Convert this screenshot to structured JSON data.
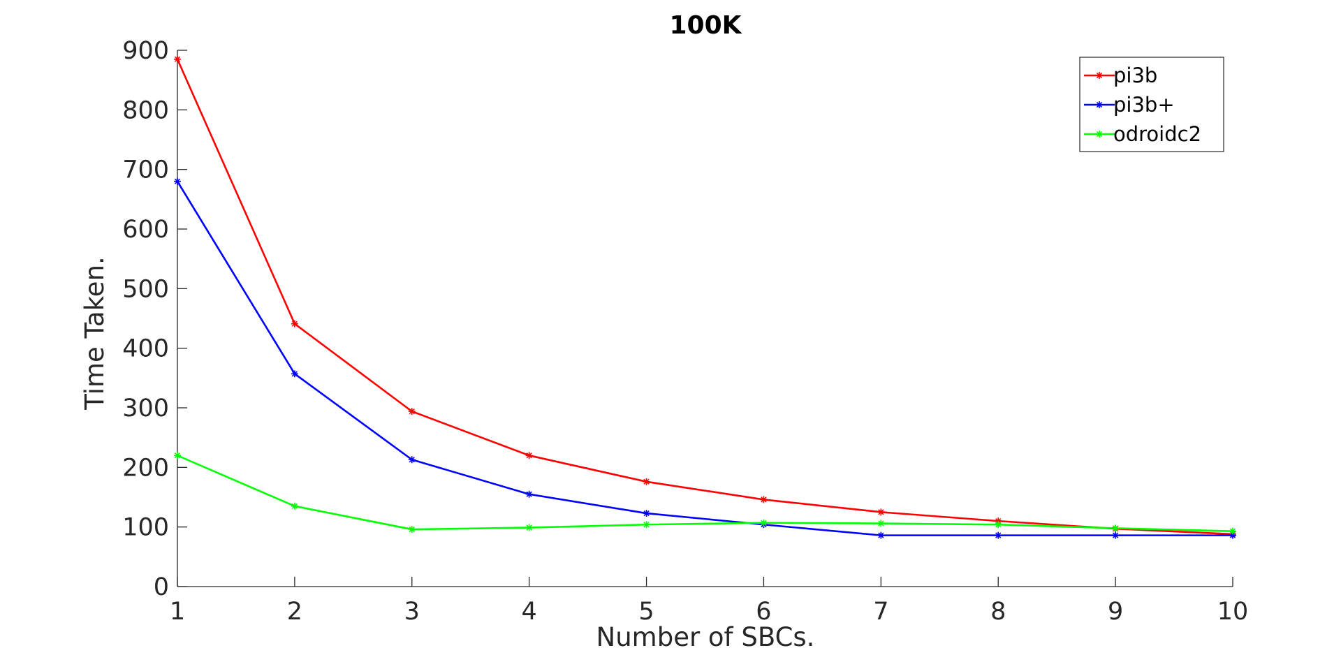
{
  "chart_data": {
    "type": "line",
    "title": "100K",
    "xlabel": "Number of SBCs.",
    "ylabel": "Time Taken.",
    "x": [
      1,
      2,
      3,
      4,
      5,
      6,
      7,
      8,
      9,
      10
    ],
    "xlim": [
      1,
      10
    ],
    "ylim": [
      0,
      900
    ],
    "xticks": [
      "1",
      "2",
      "3",
      "4",
      "5",
      "6",
      "7",
      "8",
      "9",
      "10"
    ],
    "yticks": [
      "0",
      "100",
      "200",
      "300",
      "400",
      "500",
      "600",
      "700",
      "800",
      "900"
    ],
    "grid": false,
    "legend_position": "top-right",
    "marker": "*",
    "series": [
      {
        "name": "pi3b",
        "color": "#ff0000",
        "values": [
          885,
          441,
          294,
          220,
          176,
          146,
          125,
          110,
          97,
          88
        ]
      },
      {
        "name": "pi3b+",
        "color": "#0000ff",
        "values": [
          680,
          357,
          213,
          155,
          123,
          104,
          86,
          86,
          86,
          86
        ]
      },
      {
        "name": "odroidc2",
        "color": "#00ff00",
        "values": [
          220,
          135,
          96,
          99,
          104,
          107,
          106,
          104,
          98,
          93
        ]
      }
    ]
  }
}
